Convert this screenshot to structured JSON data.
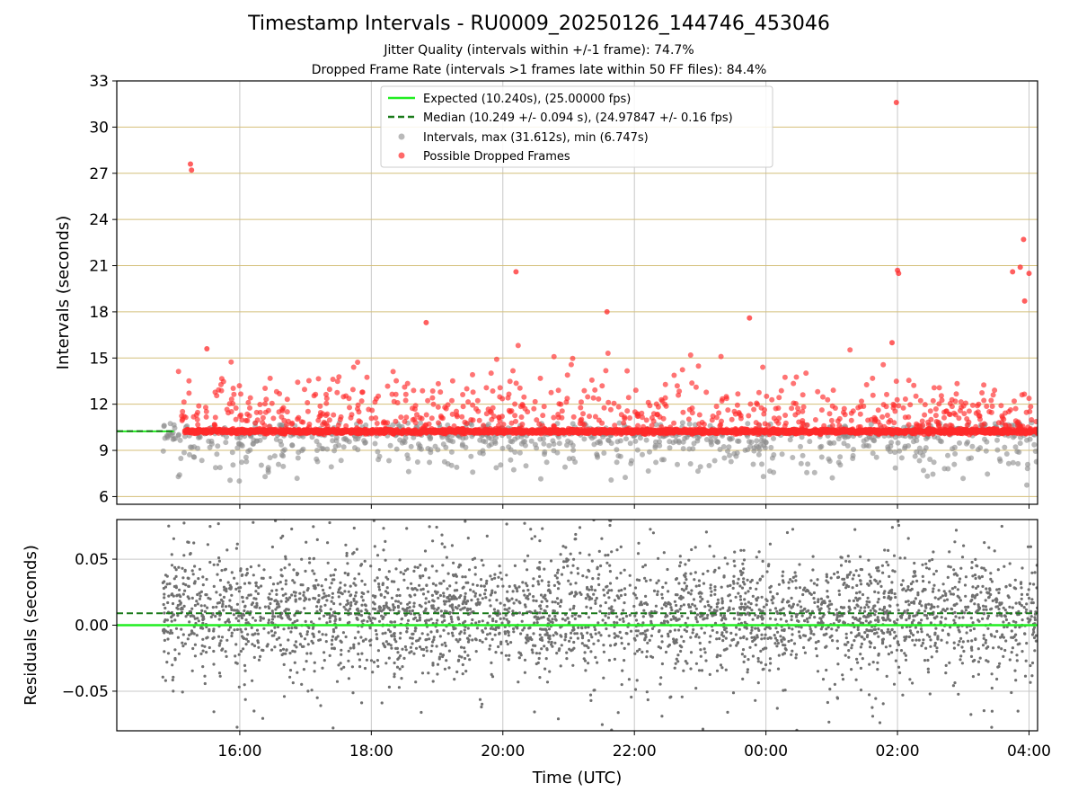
{
  "chart_data": [
    {
      "type": "scatter",
      "title": "Timestamp Intervals - RU0009_20250126_144746_453046",
      "subtitle_1": "Jitter Quality (intervals within +/-1 frame): 74.7%",
      "subtitle_2": "Dropped Frame Rate (intervals >1 frames late within 50 FF files): 84.4%",
      "ylabel": "Intervals (seconds)",
      "xlabel": "",
      "ylim": [
        5.5,
        33
      ],
      "xlim_hours": [
        14.13,
        28.13
      ],
      "yticks": [
        6,
        9,
        12,
        15,
        18,
        21,
        24,
        27,
        30,
        33
      ],
      "grid": true,
      "legend_placement": "top-center",
      "legend": [
        "Expected (10.240s), (25.00000 fps)",
        "Median (10.249 +/- 0.094 s), (24.97847 +/- 0.16 fps)",
        "Intervals, max (31.612s), min (6.747s)",
        "Possible Dropped Frames"
      ],
      "expected_interval": 10.24,
      "median_interval": 10.249,
      "max_interval": 31.612,
      "min_interval": 6.747,
      "dropped_frame_outliers": [
        {
          "t": "15:15",
          "y": 27.6
        },
        {
          "t": "15:16",
          "y": 27.2
        },
        {
          "t": "15:30",
          "y": 15.6
        },
        {
          "t": "18:50",
          "y": 17.3
        },
        {
          "t": "20:12",
          "y": 20.6
        },
        {
          "t": "21:35",
          "y": 18.0
        },
        {
          "t": "23:45",
          "y": 17.6
        },
        {
          "t": "01:55",
          "y": 16.0
        },
        {
          "t": "01:59",
          "y": 31.6
        },
        {
          "t": "02:00",
          "y": 20.7
        },
        {
          "t": "02:01",
          "y": 20.5
        },
        {
          "t": "03:45",
          "y": 20.6
        },
        {
          "t": "03:52",
          "y": 20.9
        },
        {
          "t": "03:55",
          "y": 22.7
        },
        {
          "t": "03:56",
          "y": 18.7
        },
        {
          "t": "04:00",
          "y": 20.5
        }
      ],
      "min_interval_point": {
        "t": "03:58",
        "y": 6.747
      },
      "colors": {
        "expected": "#22ee22",
        "median": "#1a7a1a",
        "intervals": "#8a8a8a",
        "dropped": "#ff2a2a",
        "grid_h": "#d4bf7a",
        "grid_v": "#c8c8c8"
      }
    },
    {
      "type": "scatter",
      "ylabel": "Residuals (seconds)",
      "xlabel": "Time (UTC)",
      "ylim": [
        -0.08,
        0.08
      ],
      "yticks": [
        "0.05",
        "0.00",
        "−0.05"
      ],
      "ytick_values": [
        0.05,
        0.0,
        -0.05
      ],
      "xticks": [
        "16:00",
        "18:00",
        "20:00",
        "22:00",
        "00:00",
        "02:00",
        "04:00"
      ],
      "xtick_hours": [
        16,
        18,
        20,
        22,
        24,
        26,
        28
      ],
      "expected_residual": 0.0,
      "median_residual": 0.009,
      "grid": true
    }
  ]
}
